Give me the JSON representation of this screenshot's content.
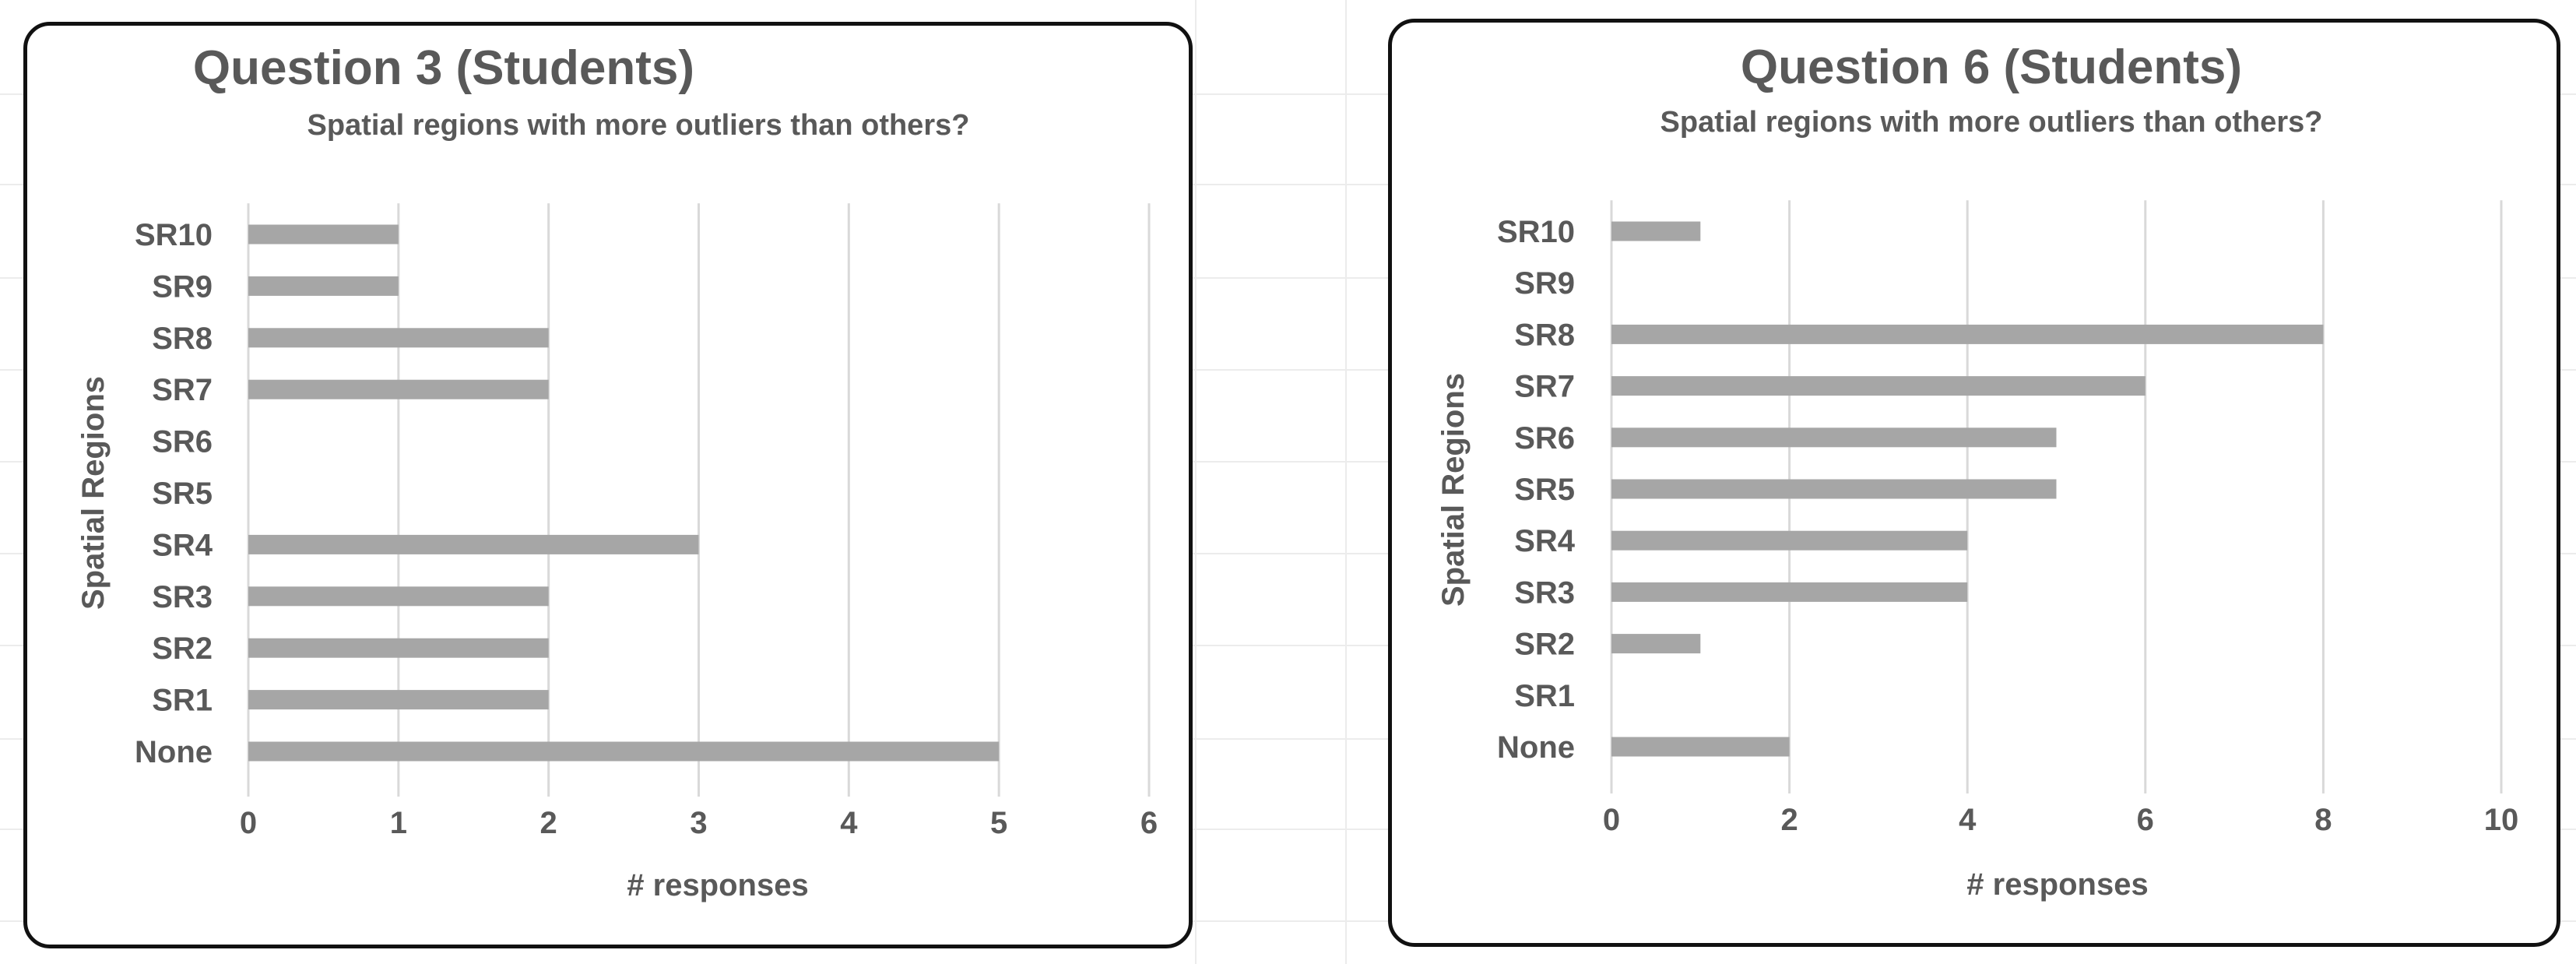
{
  "colors": {
    "bar": "#a6a6a6",
    "gridline": "#d9d9d9",
    "text": "#595959",
    "panel_border": "#111111"
  },
  "chart_data": [
    {
      "type": "bar",
      "orientation": "horizontal",
      "title": "Question 3 (Students)",
      "subtitle": "Spatial regions with more outliers than others?",
      "xlabel": "# responses",
      "ylabel": "Spatial Regions",
      "categories": [
        "SR10",
        "SR9",
        "SR8",
        "SR7",
        "SR6",
        "SR5",
        "SR4",
        "SR3",
        "SR2",
        "SR1",
        "None"
      ],
      "values": [
        1,
        1,
        2,
        2,
        0,
        0,
        3,
        2,
        2,
        2,
        5
      ],
      "xlim": [
        0,
        6
      ],
      "xticks": [
        0,
        1,
        2,
        3,
        4,
        5,
        6
      ],
      "grid": "vertical",
      "legend": "none"
    },
    {
      "type": "bar",
      "orientation": "horizontal",
      "title": "Question 6 (Students)",
      "subtitle": "Spatial regions with more outliers than others?",
      "xlabel": "# responses",
      "ylabel": "Spatial Regions",
      "categories": [
        "SR10",
        "SR9",
        "SR8",
        "SR7",
        "SR6",
        "SR5",
        "SR4",
        "SR3",
        "SR2",
        "SR1",
        "None"
      ],
      "values": [
        1,
        0,
        8,
        6,
        5,
        5,
        4,
        4,
        1,
        0,
        2
      ],
      "xlim": [
        0,
        10
      ],
      "xticks": [
        0,
        2,
        4,
        6,
        8,
        10
      ],
      "grid": "vertical",
      "legend": "none"
    }
  ]
}
